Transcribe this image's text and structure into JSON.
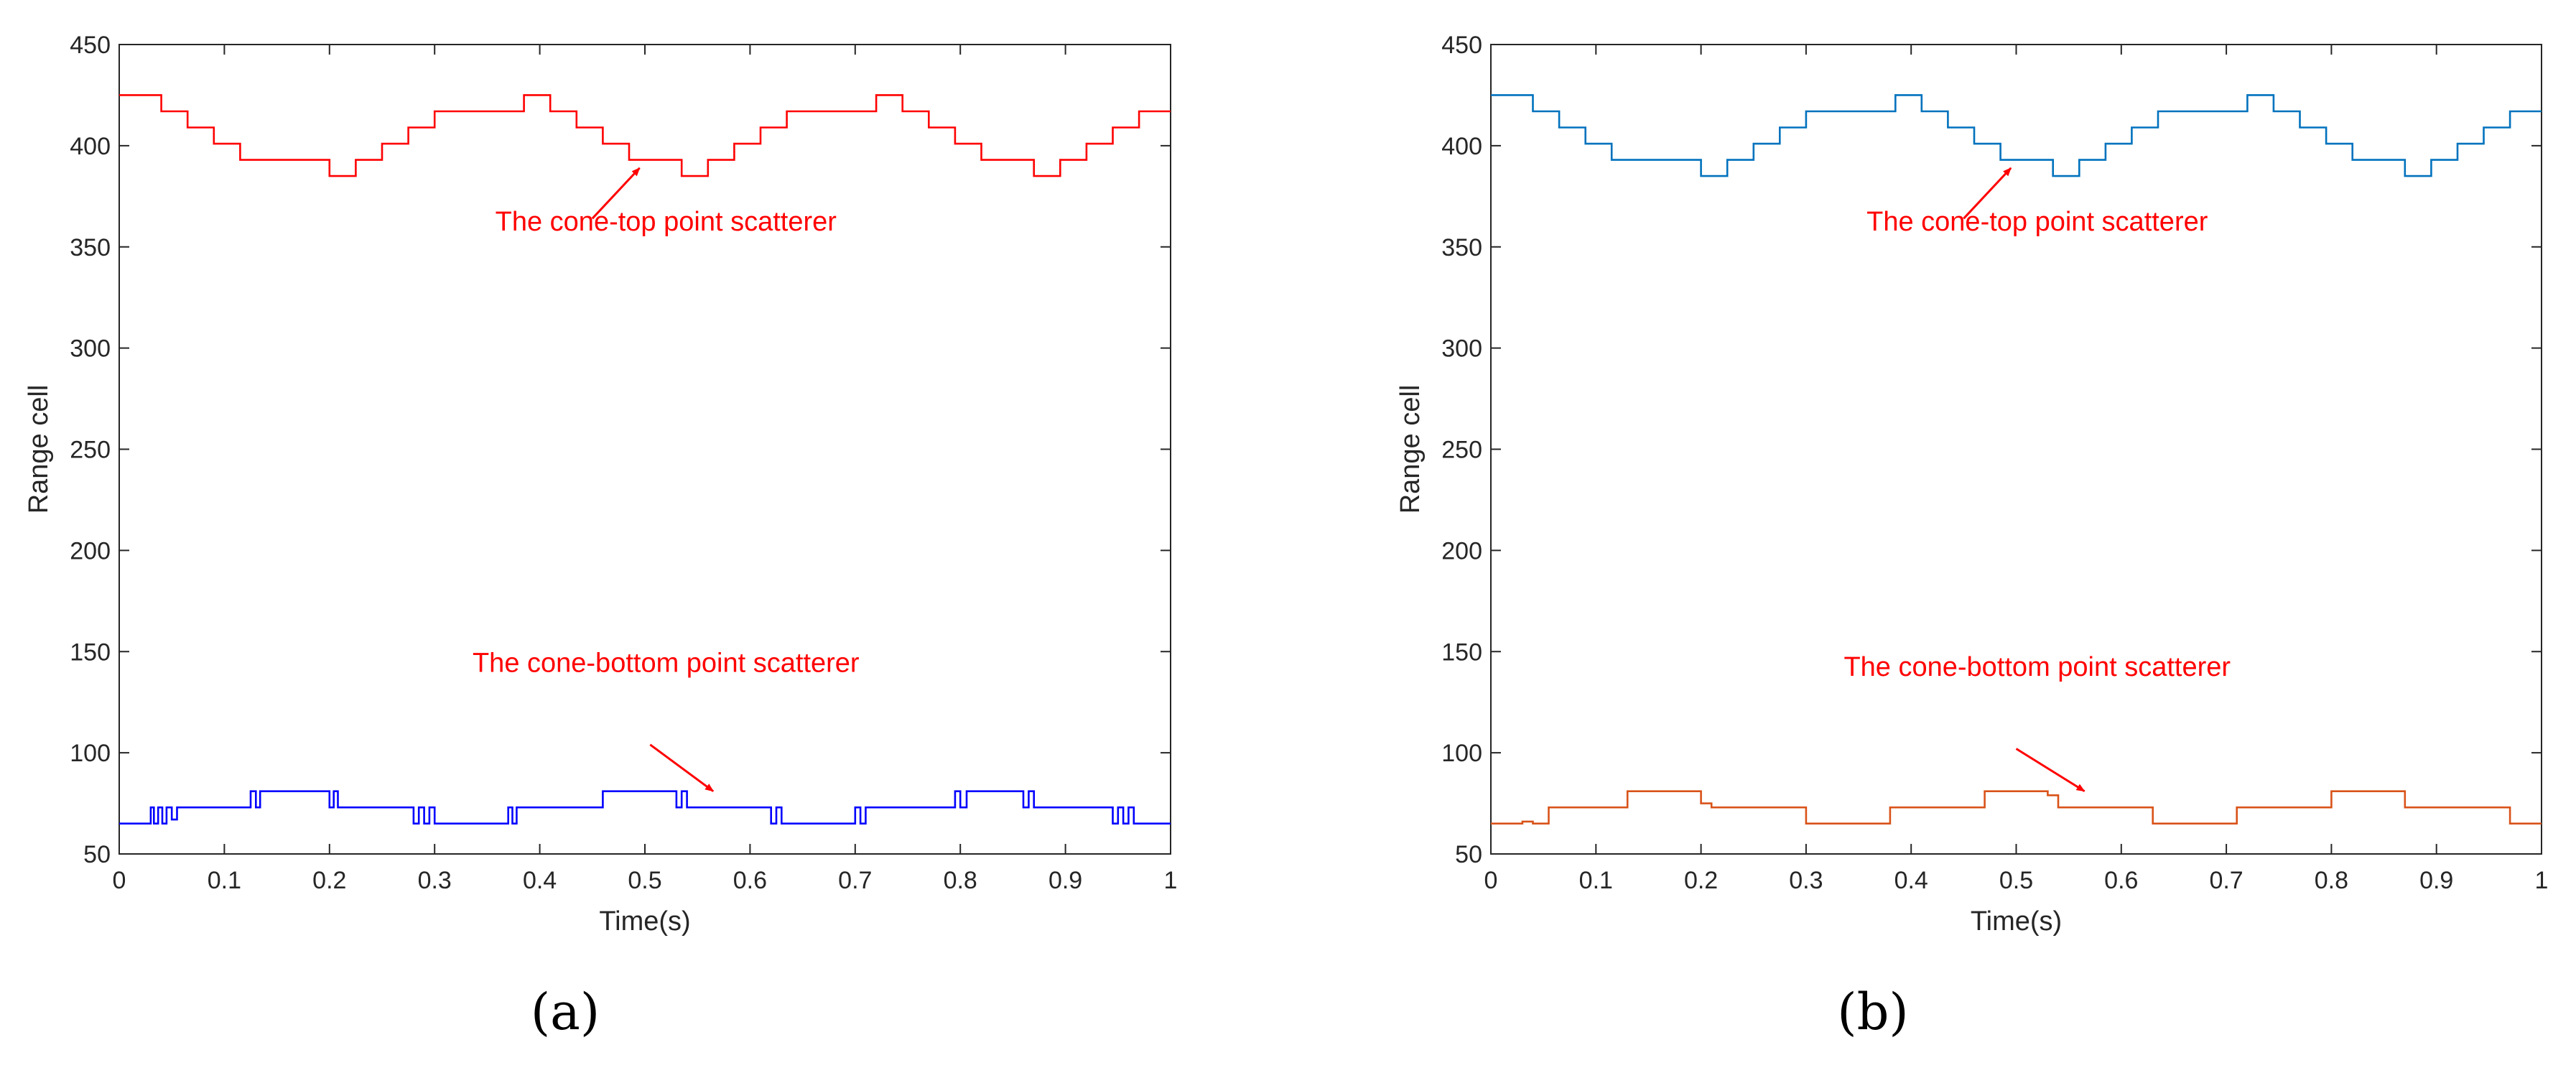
{
  "chart_data": [
    {
      "type": "line",
      "panel_label": "(a)",
      "xlabel": "Time(s)",
      "ylabel": "Range cell",
      "xlim": [
        0,
        1
      ],
      "ylim": [
        50,
        450
      ],
      "xticks": [
        0,
        0.1,
        0.2,
        0.3,
        0.4,
        0.5,
        0.6,
        0.7,
        0.8,
        0.9,
        1
      ],
      "xtick_labels": [
        "0",
        "0.1",
        "0.2",
        "0.3",
        "0.4",
        "0.5",
        "0.6",
        "0.7",
        "0.8",
        "0.9",
        "1"
      ],
      "yticks": [
        50,
        100,
        150,
        200,
        250,
        300,
        350,
        400,
        450
      ],
      "ytick_labels": [
        "50",
        "100",
        "150",
        "200",
        "250",
        "300",
        "350",
        "400",
        "450"
      ],
      "grid": false,
      "series": [
        {
          "color": "#ff0000",
          "x": [
            0,
            0.04,
            0.04,
            0.065,
            0.065,
            0.09,
            0.09,
            0.115,
            0.115,
            0.2,
            0.2,
            0.225,
            0.225,
            0.25,
            0.25,
            0.275,
            0.275,
            0.3,
            0.3,
            0.385,
            0.385,
            0.41,
            0.41,
            0.435,
            0.435,
            0.46,
            0.46,
            0.485,
            0.485,
            0.535,
            0.535,
            0.56,
            0.56,
            0.585,
            0.585,
            0.61,
            0.61,
            0.635,
            0.635,
            0.72,
            0.72,
            0.745,
            0.745,
            0.77,
            0.77,
            0.795,
            0.795,
            0.82,
            0.82,
            0.87,
            0.87,
            0.895,
            0.895,
            0.92,
            0.92,
            0.945,
            0.945,
            0.97,
            0.97,
            1
          ],
          "y": [
            425,
            425,
            417,
            417,
            409,
            409,
            401,
            401,
            393,
            393,
            385,
            385,
            393,
            393,
            401,
            401,
            409,
            409,
            417,
            417,
            425,
            425,
            417,
            417,
            409,
            409,
            401,
            401,
            393,
            393,
            385,
            385,
            393,
            393,
            401,
            401,
            409,
            409,
            417,
            417,
            425,
            425,
            417,
            417,
            409,
            409,
            401,
            401,
            393,
            393,
            385,
            385,
            393,
            393,
            401,
            401,
            409,
            409,
            417,
            417
          ]
        },
        {
          "color": "#0000ff",
          "x": [
            0,
            0.03,
            0.03,
            0.033,
            0.033,
            0.037,
            0.037,
            0.041,
            0.041,
            0.045,
            0.045,
            0.05,
            0.05,
            0.055,
            0.055,
            0.125,
            0.125,
            0.13,
            0.13,
            0.134,
            0.134,
            0.14,
            0.14,
            0.2,
            0.2,
            0.204,
            0.204,
            0.208,
            0.208,
            0.212,
            0.212,
            0.28,
            0.28,
            0.285,
            0.285,
            0.29,
            0.29,
            0.295,
            0.295,
            0.3,
            0.3,
            0.37,
            0.37,
            0.374,
            0.374,
            0.378,
            0.378,
            0.38,
            0.38,
            0.46,
            0.46,
            0.465,
            0.465,
            0.53,
            0.53,
            0.535,
            0.535,
            0.54,
            0.54,
            0.545,
            0.545,
            0.62,
            0.62,
            0.625,
            0.625,
            0.63,
            0.63,
            0.7,
            0.7,
            0.705,
            0.705,
            0.71,
            0.71,
            0.715,
            0.715,
            0.72,
            0.72,
            0.795,
            0.795,
            0.8,
            0.8,
            0.806,
            0.806,
            0.812,
            0.812,
            0.86,
            0.86,
            0.865,
            0.865,
            0.87,
            0.87,
            0.945,
            0.945,
            0.95,
            0.95,
            0.955,
            0.955,
            0.96,
            0.96,
            0.965,
            0.965,
            0.97,
            0.97,
            1
          ],
          "y": [
            65,
            65,
            73,
            73,
            65,
            65,
            73,
            73,
            65,
            65,
            73,
            73,
            67,
            67,
            73,
            73,
            81,
            81,
            73,
            73,
            81,
            81,
            81,
            81,
            73,
            73,
            81,
            81,
            73,
            73,
            73,
            73,
            65,
            65,
            73,
            73,
            65,
            65,
            73,
            73,
            65,
            65,
            73,
            73,
            65,
            65,
            73,
            73,
            73,
            73,
            81,
            81,
            81,
            81,
            73,
            73,
            81,
            81,
            73,
            73,
            73,
            73,
            65,
            65,
            73,
            73,
            65,
            65,
            73,
            73,
            65,
            65,
            73,
            73,
            73,
            73,
            73,
            73,
            81,
            81,
            73,
            73,
            81,
            81,
            81,
            81,
            73,
            73,
            81,
            81,
            73,
            73,
            65,
            65,
            73,
            73,
            65,
            65,
            73,
            73,
            65,
            65,
            65,
            65
          ]
        }
      ],
      "annotations": [
        {
          "text": "The cone-top  point  scatterer",
          "color": "#ff0000",
          "text_at": [
            0.52,
            358
          ],
          "arrow_from": [
            0.45,
            364
          ],
          "arrow_to": [
            0.495,
            389
          ]
        },
        {
          "text": "The cone-bottom  point  scatterer",
          "color": "#ff0000",
          "text_at": [
            0.52,
            140
          ],
          "arrow_from": [
            0.505,
            104
          ],
          "arrow_to": [
            0.565,
            81
          ]
        }
      ]
    },
    {
      "type": "line",
      "panel_label": "(b)",
      "xlabel": "Time(s)",
      "ylabel": "Range cell",
      "xlim": [
        0,
        1
      ],
      "ylim": [
        50,
        450
      ],
      "xticks": [
        0,
        0.1,
        0.2,
        0.3,
        0.4,
        0.5,
        0.6,
        0.7,
        0.8,
        0.9,
        1
      ],
      "xtick_labels": [
        "0",
        "0.1",
        "0.2",
        "0.3",
        "0.4",
        "0.5",
        "0.6",
        "0.7",
        "0.8",
        "0.9",
        "1"
      ],
      "yticks": [
        50,
        100,
        150,
        200,
        250,
        300,
        350,
        400,
        450
      ],
      "ytick_labels": [
        "50",
        "100",
        "150",
        "200",
        "250",
        "300",
        "350",
        "400",
        "450"
      ],
      "grid": false,
      "series": [
        {
          "color": "#0072bd",
          "x": [
            0,
            0.04,
            0.04,
            0.065,
            0.065,
            0.09,
            0.09,
            0.115,
            0.115,
            0.2,
            0.2,
            0.225,
            0.225,
            0.25,
            0.25,
            0.275,
            0.275,
            0.3,
            0.3,
            0.385,
            0.385,
            0.41,
            0.41,
            0.435,
            0.435,
            0.46,
            0.46,
            0.485,
            0.485,
            0.535,
            0.535,
            0.56,
            0.56,
            0.585,
            0.585,
            0.61,
            0.61,
            0.635,
            0.635,
            0.72,
            0.72,
            0.745,
            0.745,
            0.77,
            0.77,
            0.795,
            0.795,
            0.82,
            0.82,
            0.87,
            0.87,
            0.895,
            0.895,
            0.92,
            0.92,
            0.945,
            0.945,
            0.97,
            0.97,
            1
          ],
          "y": [
            425,
            425,
            417,
            417,
            409,
            409,
            401,
            401,
            393,
            393,
            385,
            385,
            393,
            393,
            401,
            401,
            409,
            409,
            417,
            417,
            425,
            425,
            417,
            417,
            409,
            409,
            401,
            401,
            393,
            393,
            385,
            385,
            393,
            393,
            401,
            401,
            409,
            409,
            417,
            417,
            425,
            425,
            417,
            417,
            409,
            409,
            401,
            401,
            393,
            393,
            385,
            385,
            393,
            393,
            401,
            401,
            409,
            409,
            417,
            417
          ]
        },
        {
          "color": "#d95319",
          "x": [
            0,
            0.03,
            0.03,
            0.04,
            0.04,
            0.055,
            0.055,
            0.13,
            0.13,
            0.2,
            0.2,
            0.21,
            0.21,
            0.3,
            0.3,
            0.38,
            0.38,
            0.47,
            0.47,
            0.53,
            0.53,
            0.54,
            0.54,
            0.63,
            0.63,
            0.71,
            0.71,
            0.8,
            0.8,
            0.87,
            0.87,
            0.97,
            0.97,
            1
          ],
          "y": [
            65,
            65,
            66,
            66,
            65,
            65,
            73,
            73,
            81,
            81,
            75,
            75,
            73,
            73,
            65,
            65,
            73,
            73,
            81,
            81,
            79,
            79,
            73,
            73,
            65,
            65,
            73,
            73,
            81,
            81,
            73,
            73,
            65,
            65
          ]
        }
      ],
      "annotations": [
        {
          "text": "The cone-top  point  scatterer",
          "color": "#ff0000",
          "text_at": [
            0.52,
            358
          ],
          "arrow_from": [
            0.45,
            364
          ],
          "arrow_to": [
            0.495,
            389
          ]
        },
        {
          "text": "The cone-bottom  point  scatterer",
          "color": "#ff0000",
          "text_at": [
            0.52,
            138
          ],
          "arrow_from": [
            0.5,
            102
          ],
          "arrow_to": [
            0.565,
            81
          ]
        }
      ]
    }
  ]
}
